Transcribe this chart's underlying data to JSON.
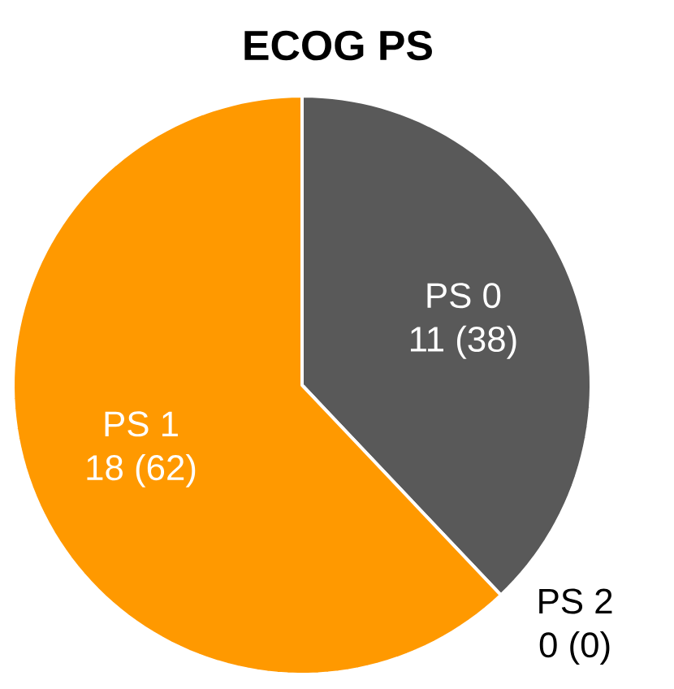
{
  "chart_data": {
    "type": "pie",
    "title": "ECOG PS",
    "categories": [
      "PS 0",
      "PS 2",
      "PS 1"
    ],
    "values": [
      11,
      0,
      18
    ],
    "value_labels": [
      "11 (38)",
      "0 (0)",
      "18 (62)"
    ],
    "colors": [
      "#595959",
      "#a5a5a5",
      "#ff9900"
    ]
  }
}
